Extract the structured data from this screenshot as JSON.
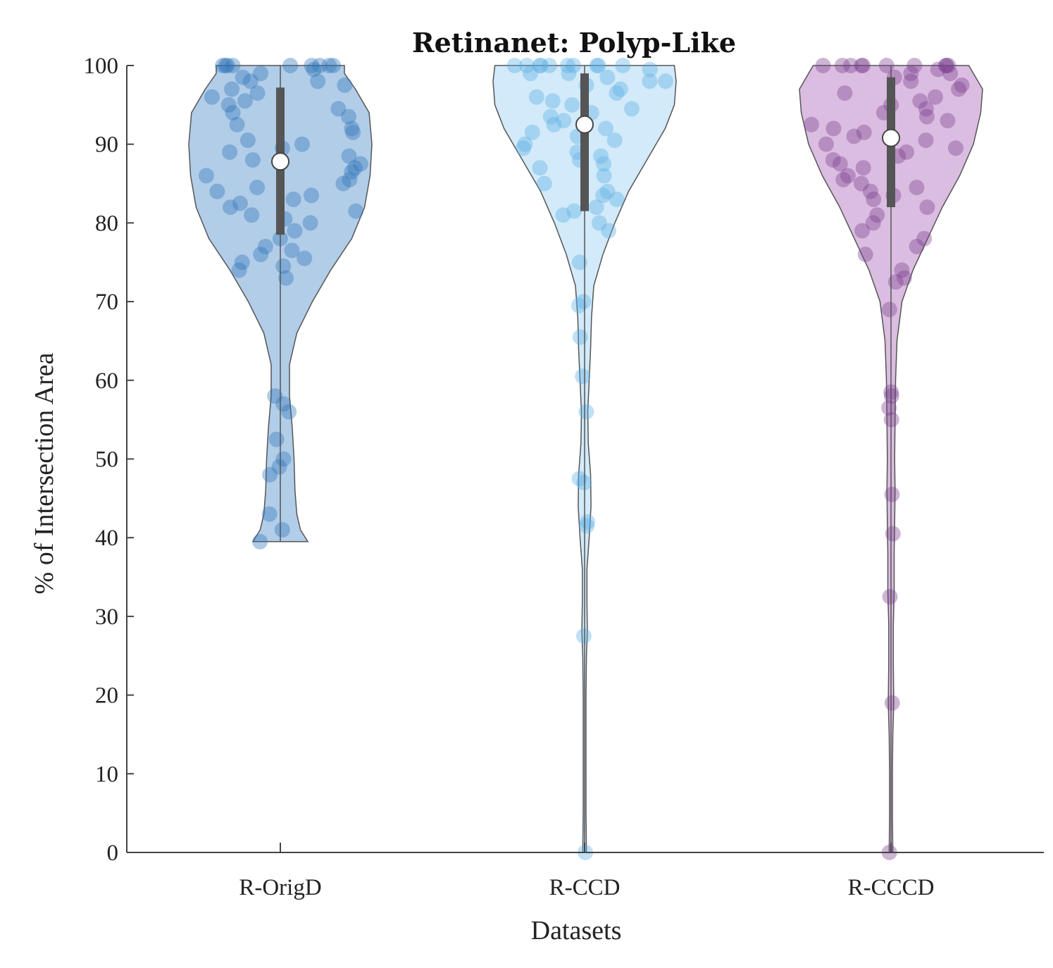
{
  "chart_data": {
    "type": "violin",
    "title": "Retinanet: Polyp-Like",
    "xlabel": "Datasets",
    "ylabel": "% of Intersection Area",
    "ylim": [
      0,
      100
    ],
    "yticks": [
      "0",
      "10",
      "20",
      "30",
      "40",
      "50",
      "60",
      "70",
      "80",
      "90",
      "100"
    ],
    "categories": [
      "R-OrigD",
      "R-CCD",
      "R-CCCD"
    ],
    "grid": false,
    "series": [
      {
        "category": "R-OrigD",
        "color": "#2f73b8",
        "fill": "#a9c8e5",
        "median": 87.8,
        "q1": 78.5,
        "q3": 97.2,
        "min": 39.5,
        "max": 100,
        "density": [
          [
            39.5,
            0.3
          ],
          [
            41,
            0.22
          ],
          [
            43,
            0.18
          ],
          [
            46,
            0.16
          ],
          [
            50,
            0.15
          ],
          [
            54,
            0.13
          ],
          [
            58,
            0.1
          ],
          [
            62,
            0.1
          ],
          [
            66,
            0.18
          ],
          [
            70,
            0.35
          ],
          [
            74,
            0.55
          ],
          [
            78,
            0.78
          ],
          [
            82,
            0.92
          ],
          [
            86,
            0.98
          ],
          [
            90,
            1.0
          ],
          [
            94,
            0.97
          ],
          [
            97,
            0.82
          ],
          [
            99,
            0.7
          ],
          [
            100,
            0.7
          ]
        ],
        "points": [
          100,
          100,
          100,
          100,
          100,
          100,
          100,
          100,
          100,
          99.5,
          99,
          98.5,
          98,
          98,
          97.5,
          97,
          96.5,
          96,
          95.5,
          95,
          94.5,
          94,
          93.5,
          92.5,
          92,
          91.5,
          90.5,
          90,
          89.5,
          89,
          88.5,
          88,
          87.5,
          87,
          86.5,
          86,
          85.5,
          85,
          84.5,
          84,
          83.5,
          83,
          82.5,
          82,
          81.5,
          81,
          80.5,
          80,
          79,
          78,
          77,
          76.5,
          76,
          75.5,
          75,
          74.5,
          74,
          73,
          58,
          57,
          56,
          52.5,
          50,
          49,
          48,
          43,
          41,
          39.5
        ]
      },
      {
        "category": "R-CCD",
        "color": "#5aaee6",
        "fill": "#cde8f8",
        "median": 92.5,
        "q1": 81.5,
        "q3": 99.0,
        "min": 0,
        "max": 100,
        "density": [
          [
            0,
            0.02
          ],
          [
            5,
            0.015
          ],
          [
            10,
            0.015
          ],
          [
            15,
            0.015
          ],
          [
            20,
            0.015
          ],
          [
            25,
            0.02
          ],
          [
            28,
            0.03
          ],
          [
            32,
            0.025
          ],
          [
            36,
            0.025
          ],
          [
            40,
            0.05
          ],
          [
            44,
            0.07
          ],
          [
            48,
            0.065
          ],
          [
            52,
            0.04
          ],
          [
            56,
            0.035
          ],
          [
            60,
            0.05
          ],
          [
            64,
            0.065
          ],
          [
            68,
            0.075
          ],
          [
            72,
            0.1
          ],
          [
            76,
            0.2
          ],
          [
            80,
            0.33
          ],
          [
            84,
            0.48
          ],
          [
            88,
            0.68
          ],
          [
            92,
            0.88
          ],
          [
            95,
            0.98
          ],
          [
            98,
            1.0
          ],
          [
            100,
            0.98
          ]
        ],
        "points": [
          100,
          100,
          100,
          100,
          100,
          100,
          100,
          100,
          100,
          100,
          99.5,
          99,
          99,
          98.5,
          98,
          98,
          97.5,
          97,
          96.5,
          96,
          95.5,
          95,
          94.5,
          94,
          93.5,
          93,
          92.5,
          92,
          91.5,
          91,
          90.5,
          90,
          89.5,
          89,
          88.5,
          88,
          87.5,
          87,
          86,
          85,
          84,
          83.5,
          83,
          82,
          81.5,
          81,
          80,
          79,
          75,
          70,
          69.5,
          65.5,
          60.5,
          56,
          47.5,
          47,
          42,
          41.5,
          27.5,
          0
        ]
      },
      {
        "category": "R-CCCD",
        "color": "#7a3e8e",
        "fill": "#d7b6de",
        "median": 90.8,
        "q1": 82.0,
        "q3": 98.5,
        "min": 0,
        "max": 100,
        "density": [
          [
            0,
            0.02
          ],
          [
            5,
            0.015
          ],
          [
            10,
            0.015
          ],
          [
            15,
            0.02
          ],
          [
            19,
            0.03
          ],
          [
            24,
            0.025
          ],
          [
            29,
            0.025
          ],
          [
            33,
            0.035
          ],
          [
            38,
            0.035
          ],
          [
            42,
            0.04
          ],
          [
            46,
            0.045
          ],
          [
            50,
            0.04
          ],
          [
            55,
            0.045
          ],
          [
            60,
            0.05
          ],
          [
            65,
            0.065
          ],
          [
            70,
            0.12
          ],
          [
            74,
            0.24
          ],
          [
            78,
            0.4
          ],
          [
            82,
            0.56
          ],
          [
            86,
            0.75
          ],
          [
            90,
            0.9
          ],
          [
            94,
            0.98
          ],
          [
            97,
            1.0
          ],
          [
            100,
            0.85
          ]
        ],
        "points": [
          100,
          100,
          100,
          100,
          100,
          100,
          100,
          100,
          100,
          100,
          99.5,
          99,
          99,
          98.5,
          98,
          97.5,
          97,
          96.5,
          96,
          95.5,
          95,
          94.5,
          94,
          93.5,
          93,
          92.5,
          92,
          91.5,
          91,
          90.5,
          90,
          89.5,
          89,
          88.5,
          88,
          87.5,
          87,
          86,
          85.5,
          85,
          84.5,
          84,
          83.5,
          83,
          82,
          81,
          80,
          79,
          78,
          77,
          76,
          74,
          73,
          72.5,
          69,
          58.5,
          58,
          56.5,
          55,
          45.5,
          40.5,
          32.5,
          19,
          0
        ]
      }
    ]
  }
}
